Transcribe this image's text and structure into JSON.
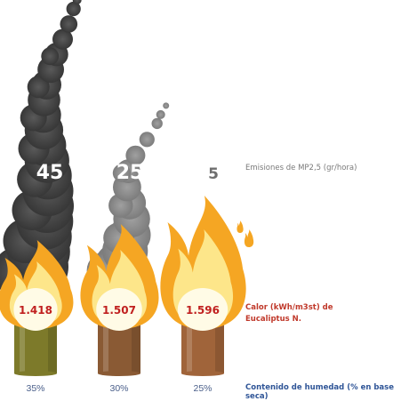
{
  "chart_data": {
    "type": "bar",
    "categories": [
      "35%",
      "30%",
      "25%"
    ],
    "series": [
      {
        "name": "Emisiones de MP2,5 (gr/hora)",
        "values": [
          45,
          25,
          5
        ]
      },
      {
        "name": "Calor (kWh/m3st) de Eucaliptus N.",
        "values": [
          "1.418",
          "1.507",
          "1.596"
        ]
      }
    ],
    "xlabel": "Contenido de humedad (% en base seca)",
    "series_labels": {
      "emisiones": "Emisiones de MP2,5 (gr/hora)",
      "calor_line1": "Calor (kWh/m3st) de",
      "calor_line2": "Eucaliptus N."
    },
    "colors": {
      "smoke_dark": "#454545",
      "smoke_mid": "#8c8c8c",
      "smoke_light": "#bdbdbd",
      "flame_outer": "#f5a623",
      "flame_inner": "#fde68a",
      "flame_core": "#fffbe6",
      "heat_text": "#c0201f",
      "log_colors": [
        "#7d7a2a",
        "#8a5a34",
        "#a0643a"
      ]
    }
  }
}
